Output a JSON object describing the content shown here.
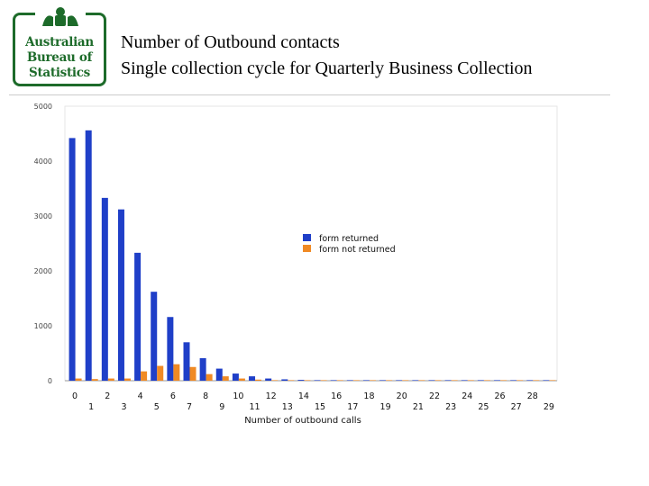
{
  "logo": {
    "line1": "Australian",
    "line2": "Bureau of",
    "line3": "Statistics",
    "color": "#1d6b2a"
  },
  "title": {
    "line1": "Number of Outbound contacts",
    "line2": "Single collection cycle for Quarterly Business Collection"
  },
  "chart_data": {
    "type": "bar",
    "title": "",
    "xlabel": "Number of outbound calls",
    "ylabel": "",
    "ylim": [
      0,
      5000
    ],
    "yticks": [
      0,
      1000,
      2000,
      3000,
      4000,
      5000
    ],
    "grid": false,
    "legend_position": "right-middle",
    "categories": [
      0,
      1,
      2,
      3,
      4,
      5,
      6,
      7,
      8,
      9,
      10,
      11,
      12,
      13,
      14,
      15,
      16,
      17,
      18,
      19,
      20,
      21,
      22,
      23,
      24,
      25,
      26,
      27,
      28,
      29
    ],
    "x_tick_labels_top": [
      "0",
      "2",
      "4",
      "6",
      "8",
      "10",
      "12",
      "14",
      "16",
      "18",
      "20",
      "22",
      "24",
      "26",
      "28"
    ],
    "x_tick_labels_bottom": [
      "1",
      "3",
      "5",
      "7",
      "9",
      "11",
      "13",
      "15",
      "17",
      "19",
      "21",
      "23",
      "25",
      "27",
      "29"
    ],
    "series": [
      {
        "name": "form returned",
        "color": "#1f3fc8",
        "values": [
          4420,
          4560,
          3330,
          3120,
          2330,
          1620,
          1160,
          700,
          410,
          220,
          130,
          80,
          40,
          25,
          15,
          10,
          8,
          6,
          5,
          4,
          3,
          3,
          2,
          2,
          2,
          1,
          1,
          1,
          1,
          1
        ]
      },
      {
        "name": "form not returned",
        "color": "#f08a24",
        "values": [
          40,
          30,
          40,
          40,
          170,
          270,
          300,
          250,
          120,
          80,
          40,
          20,
          10,
          8,
          5,
          4,
          3,
          2,
          2,
          2,
          1,
          1,
          1,
          1,
          1,
          1,
          1,
          1,
          1,
          1
        ]
      }
    ]
  }
}
